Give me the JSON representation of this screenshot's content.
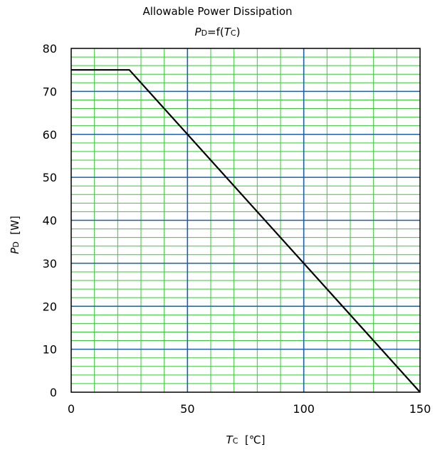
{
  "chart_data": {
    "type": "line",
    "title": "Allowable Power Dissipation",
    "subtitle": {
      "p": "P",
      "p_sub": "D",
      "mid": "=f(",
      "t": "T",
      "t_sub": "C",
      "end": ")"
    },
    "xlabel": {
      "sym": "T",
      "sub": "C",
      "unit": "[℃]"
    },
    "ylabel": {
      "sym": "P",
      "sub": "D",
      "unit": "[W]"
    },
    "xlim": [
      0,
      150
    ],
    "ylim": [
      0,
      80
    ],
    "xticks": [
      0,
      50,
      100,
      150
    ],
    "yticks": [
      0,
      10,
      20,
      30,
      40,
      50,
      60,
      70,
      80
    ],
    "grid": true,
    "legend": "none",
    "series": [
      {
        "x": [
          0,
          25,
          150
        ],
        "y": [
          75,
          75,
          0
        ]
      }
    ],
    "colors": {
      "minor_grid": "#33cc33",
      "major_grid": "#1f5fa8",
      "line": "#000000",
      "frame": "#000000"
    }
  }
}
